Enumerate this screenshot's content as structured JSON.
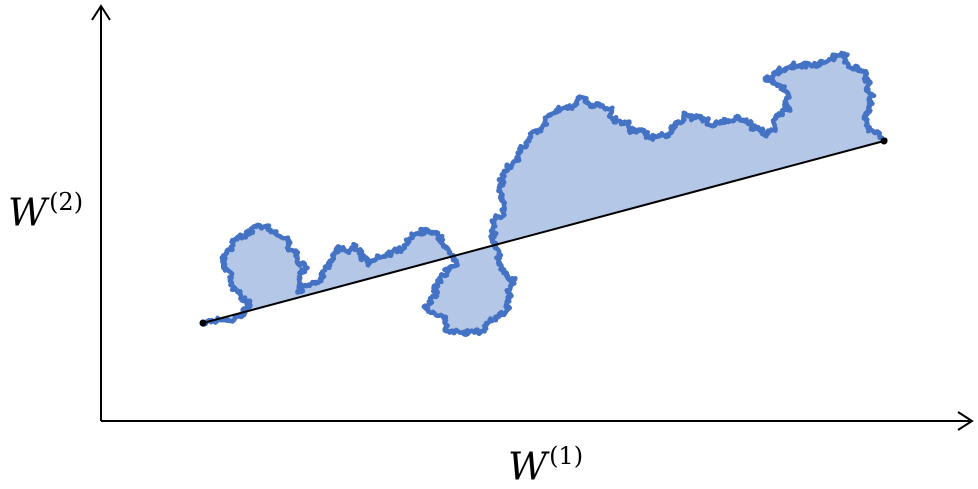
{
  "axes": {
    "x_label": {
      "base": "W",
      "superscript": "(1)"
    },
    "y_label": {
      "base": "W",
      "superscript": "(2)"
    }
  },
  "colors": {
    "path": "#4472c4",
    "fill": "#b4c7e7",
    "chord": "#000000",
    "axis": "#000000"
  },
  "icons": {
    "x_arrow": "arrow-right-icon",
    "y_arrow": "arrow-up-icon"
  }
}
